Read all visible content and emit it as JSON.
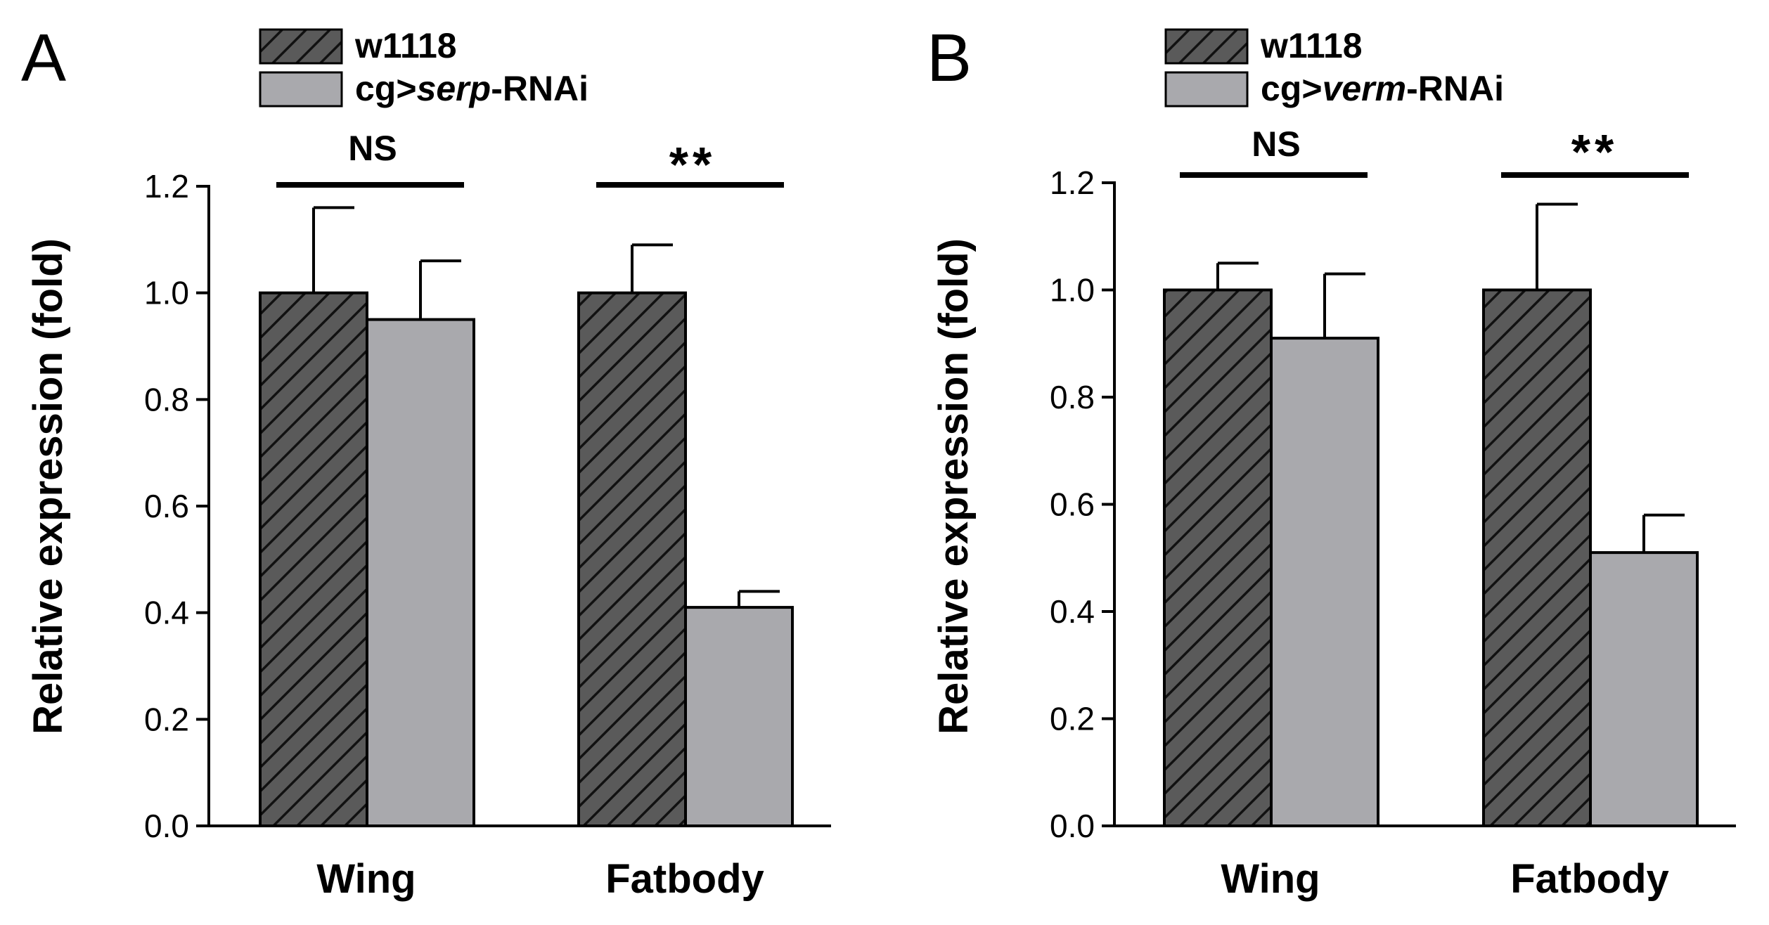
{
  "colors": {
    "control_fill": "#5a5a5a",
    "rnai_fill": "#a9a9ad",
    "hatch_line": "#111111",
    "stroke": "#000000"
  },
  "chart_data": [
    {
      "panel": "A",
      "type": "bar",
      "categories": [
        "Wing",
        "Fatbody"
      ],
      "series": [
        {
          "name": "w1118",
          "pattern": "hatched",
          "values": [
            1.0,
            1.0
          ],
          "errors": [
            0.16,
            0.09
          ]
        },
        {
          "name_prefix": "cg>",
          "name_italic": "serp",
          "name_suffix": "-RNAi",
          "pattern": "solid",
          "values": [
            0.95,
            0.41
          ],
          "errors": [
            0.11,
            0.03
          ]
        }
      ],
      "ylabel": "Relative expression (fold)",
      "xlabel": "",
      "ylim": [
        0,
        1.2
      ],
      "yticks": [
        "0.0",
        "0.2",
        "0.4",
        "0.6",
        "0.8",
        "1.0",
        "1.2"
      ],
      "significance": [
        "NS",
        "**"
      ],
      "legend_position": "top"
    },
    {
      "panel": "B",
      "type": "bar",
      "categories": [
        "Wing",
        "Fatbody"
      ],
      "series": [
        {
          "name": "w1118",
          "pattern": "hatched",
          "values": [
            1.0,
            1.0
          ],
          "errors": [
            0.05,
            0.16
          ]
        },
        {
          "name_prefix": "cg>",
          "name_italic": "verm",
          "name_suffix": "-RNAi",
          "pattern": "solid",
          "values": [
            0.91,
            0.51
          ],
          "errors": [
            0.12,
            0.07
          ]
        }
      ],
      "ylabel": "Relative expression (fold)",
      "xlabel": "",
      "ylim": [
        0,
        1.2
      ],
      "yticks": [
        "0.0",
        "0.2",
        "0.4",
        "0.6",
        "0.8",
        "1.0",
        "1.2"
      ],
      "significance": [
        "NS",
        "**"
      ],
      "legend_position": "top"
    }
  ]
}
